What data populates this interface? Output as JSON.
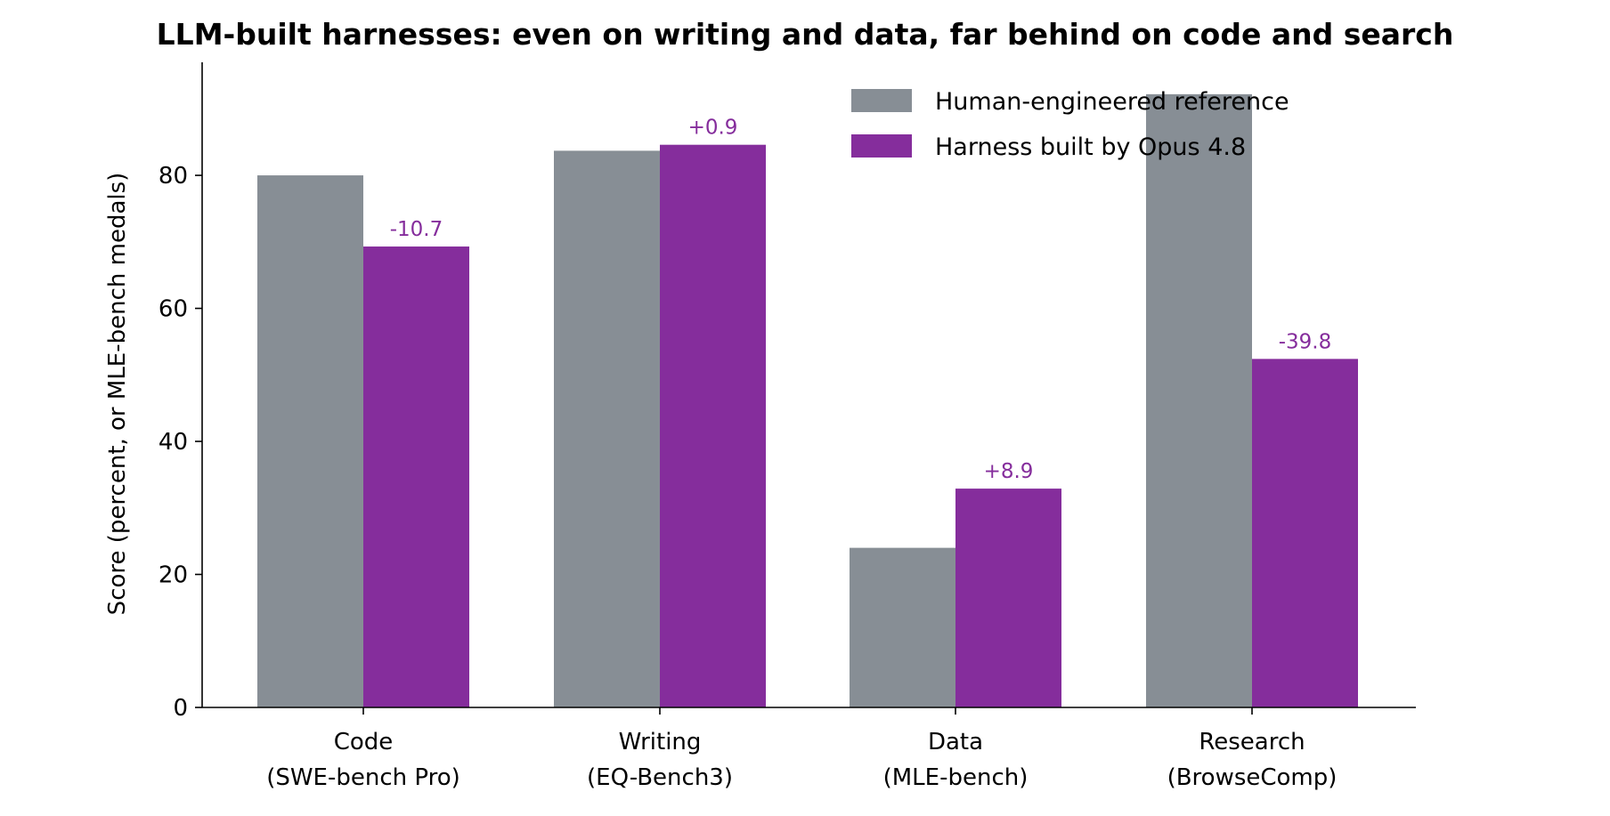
{
  "chart_data": {
    "type": "bar",
    "title": "LLM-built harnesses: even on writing and data, far behind on code and search",
    "xlabel": "",
    "ylabel": "Score (percent, or MLE-bench medals)",
    "ylim": [
      0,
      97
    ],
    "yticks": [
      0,
      20,
      40,
      60,
      80
    ],
    "grid": false,
    "legend_position": "top-right",
    "categories": [
      [
        "Code",
        "(SWE-bench Pro)"
      ],
      [
        "Writing",
        "(EQ-Bench3)"
      ],
      [
        "Data",
        "(MLE-bench)"
      ],
      [
        "Research",
        "(BrowseComp)"
      ]
    ],
    "series": [
      {
        "name": "Human-engineered reference",
        "color": "#878e95",
        "values": [
          80.0,
          83.7,
          24.0,
          92.2
        ]
      },
      {
        "name": "Harness built by Opus 4.8",
        "color": "#852d9c",
        "values": [
          69.3,
          84.6,
          32.9,
          52.4
        ]
      }
    ],
    "data_labels": [
      "-10.7",
      "+0.9",
      "+8.9",
      "-39.8"
    ],
    "data_label_color": "#852d9c"
  }
}
